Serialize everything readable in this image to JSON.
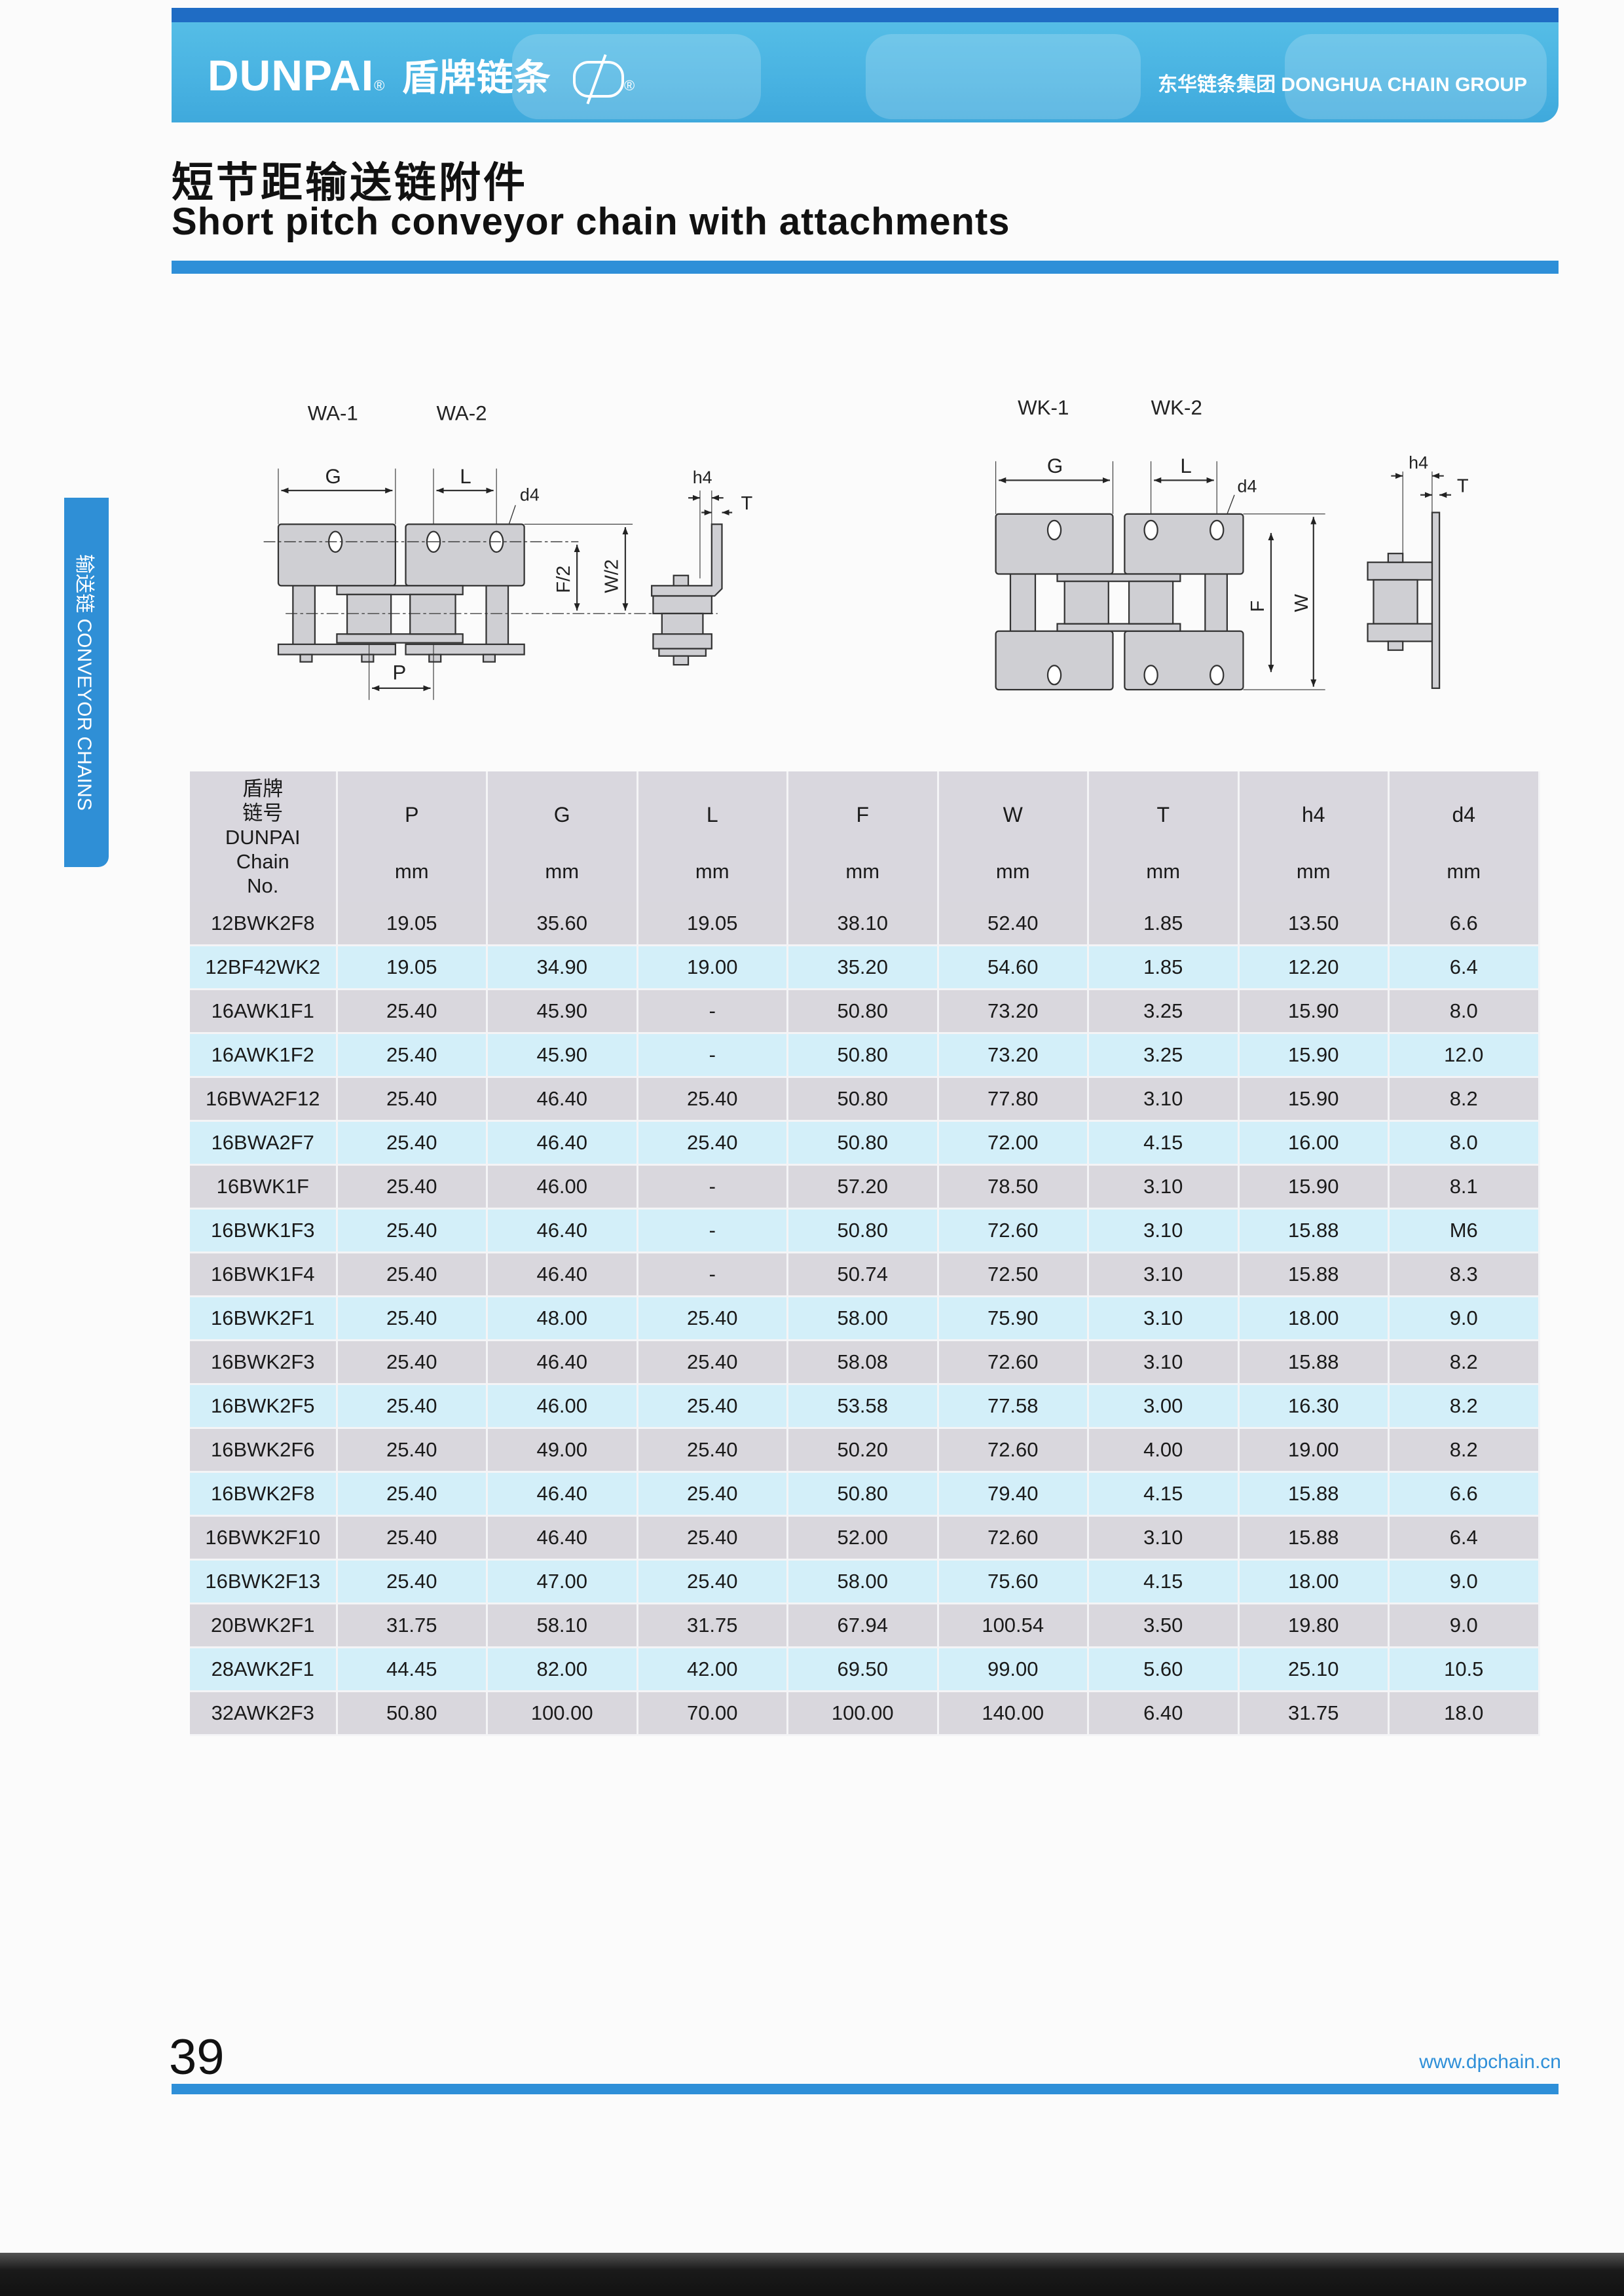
{
  "header": {
    "brand": "DUNPAI",
    "brand_cn": "盾牌链条",
    "registered": "®",
    "group": "东华链条集团 DONGHUA CHAIN GROUP",
    "colors": {
      "banner": "#49b3e2",
      "accent": "#2e8fd8",
      "top_strip": "#1f6cc4"
    }
  },
  "title": {
    "cn": "短节距输送链附件",
    "en": "Short pitch conveyor chain with attachments"
  },
  "side_tab": "输送链 CONVEYOR CHAINS",
  "diagrams": {
    "left": {
      "label1": "WA-1",
      "label2": "WA-2",
      "G": "G",
      "L": "L",
      "d4": "d4",
      "P": "P",
      "F2": "F/2",
      "W2": "W/2",
      "h4": "h4",
      "T": "T"
    },
    "right": {
      "label1": "WK-1",
      "label2": "WK-2",
      "G": "G",
      "L": "L",
      "d4": "d4",
      "F": "F",
      "W": "W",
      "h4": "h4",
      "T": "T"
    }
  },
  "table": {
    "first_header": [
      "盾牌",
      "链号",
      "DUNPAI",
      "Chain",
      "No."
    ],
    "columns": [
      {
        "symbol": "P",
        "unit": "mm"
      },
      {
        "symbol": "G",
        "unit": "mm"
      },
      {
        "symbol": "L",
        "unit": "mm"
      },
      {
        "symbol": "F",
        "unit": "mm"
      },
      {
        "symbol": "W",
        "unit": "mm"
      },
      {
        "symbol": "T",
        "unit": "mm"
      },
      {
        "symbol": "h4",
        "unit": "mm"
      },
      {
        "symbol": "d4",
        "unit": "mm"
      }
    ],
    "rows": [
      [
        "12BWK2F8",
        "19.05",
        "35.60",
        "19.05",
        "38.10",
        "52.40",
        "1.85",
        "13.50",
        "6.6"
      ],
      [
        "12BF42WK2",
        "19.05",
        "34.90",
        "19.00",
        "35.20",
        "54.60",
        "1.85",
        "12.20",
        "6.4"
      ],
      [
        "16AWK1F1",
        "25.40",
        "45.90",
        "-",
        "50.80",
        "73.20",
        "3.25",
        "15.90",
        "8.0"
      ],
      [
        "16AWK1F2",
        "25.40",
        "45.90",
        "-",
        "50.80",
        "73.20",
        "3.25",
        "15.90",
        "12.0"
      ],
      [
        "16BWA2F12",
        "25.40",
        "46.40",
        "25.40",
        "50.80",
        "77.80",
        "3.10",
        "15.90",
        "8.2"
      ],
      [
        "16BWA2F7",
        "25.40",
        "46.40",
        "25.40",
        "50.80",
        "72.00",
        "4.15",
        "16.00",
        "8.0"
      ],
      [
        "16BWK1F",
        "25.40",
        "46.00",
        "-",
        "57.20",
        "78.50",
        "3.10",
        "15.90",
        "8.1"
      ],
      [
        "16BWK1F3",
        "25.40",
        "46.40",
        "-",
        "50.80",
        "72.60",
        "3.10",
        "15.88",
        "M6"
      ],
      [
        "16BWK1F4",
        "25.40",
        "46.40",
        "-",
        "50.74",
        "72.50",
        "3.10",
        "15.88",
        "8.3"
      ],
      [
        "16BWK2F1",
        "25.40",
        "48.00",
        "25.40",
        "58.00",
        "75.90",
        "3.10",
        "18.00",
        "9.0"
      ],
      [
        "16BWK2F3",
        "25.40",
        "46.40",
        "25.40",
        "58.08",
        "72.60",
        "3.10",
        "15.88",
        "8.2"
      ],
      [
        "16BWK2F5",
        "25.40",
        "46.00",
        "25.40",
        "53.58",
        "77.58",
        "3.00",
        "16.30",
        "8.2"
      ],
      [
        "16BWK2F6",
        "25.40",
        "49.00",
        "25.40",
        "50.20",
        "72.60",
        "4.00",
        "19.00",
        "8.2"
      ],
      [
        "16BWK2F8",
        "25.40",
        "46.40",
        "25.40",
        "50.80",
        "79.40",
        "4.15",
        "15.88",
        "6.6"
      ],
      [
        "16BWK2F10",
        "25.40",
        "46.40",
        "25.40",
        "52.00",
        "72.60",
        "3.10",
        "15.88",
        "6.4"
      ],
      [
        "16BWK2F13",
        "25.40",
        "47.00",
        "25.40",
        "58.00",
        "75.60",
        "4.15",
        "18.00",
        "9.0"
      ],
      [
        "20BWK2F1",
        "31.75",
        "58.10",
        "31.75",
        "67.94",
        "100.54",
        "3.50",
        "19.80",
        "9.0"
      ],
      [
        "28AWK2F1",
        "44.45",
        "82.00",
        "42.00",
        "69.50",
        "99.00",
        "5.60",
        "25.10",
        "10.5"
      ],
      [
        "32AWK2F3",
        "50.80",
        "100.00",
        "70.00",
        "100.00",
        "140.00",
        "6.40",
        "31.75",
        "18.0"
      ]
    ]
  },
  "footer": {
    "page_number": "39",
    "url": "www.dpchain.cn"
  }
}
